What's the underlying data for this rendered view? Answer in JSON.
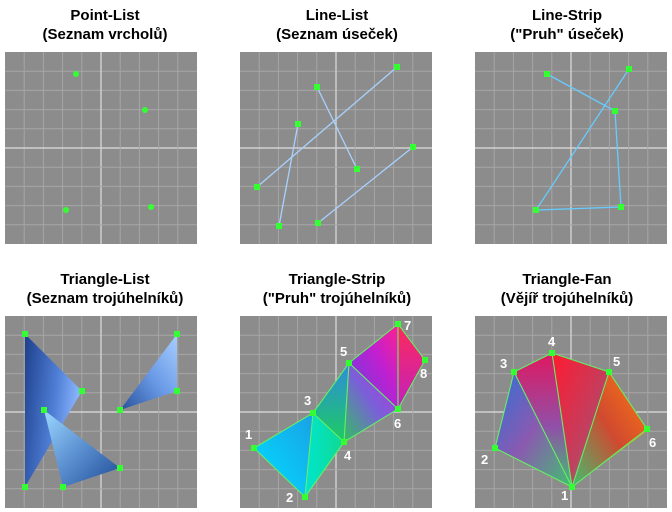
{
  "panels": [
    {
      "title": "Point-List",
      "subtitle": "(Seznam vrcholů)"
    },
    {
      "title": "Line-List",
      "subtitle": "(Seznam úseček)"
    },
    {
      "title": "Line-Strip",
      "subtitle": "(\"Pruh\" úseček)"
    },
    {
      "title": "Triangle-List",
      "subtitle": "(Seznam trojúhelníků)"
    },
    {
      "title": "Triangle-Strip",
      "subtitle": "(\"Pruh\" trojúhelníků)"
    },
    {
      "title": "Triangle-Fan",
      "subtitle": "(Vějíř trojúhelníků)"
    }
  ],
  "strip_labels": [
    "1",
    "2",
    "3",
    "4",
    "5",
    "6",
    "7",
    "8"
  ],
  "fan_labels": [
    "1",
    "2",
    "3",
    "4",
    "5",
    "6"
  ],
  "colors": {
    "grid_bg": "#8c8c8c",
    "grid_line": "#a6a6a6",
    "axis": "#d2d2d2",
    "vertex": "#33ff33",
    "line": "#a8d2ff",
    "triangle_edge": "#66ee66"
  }
}
